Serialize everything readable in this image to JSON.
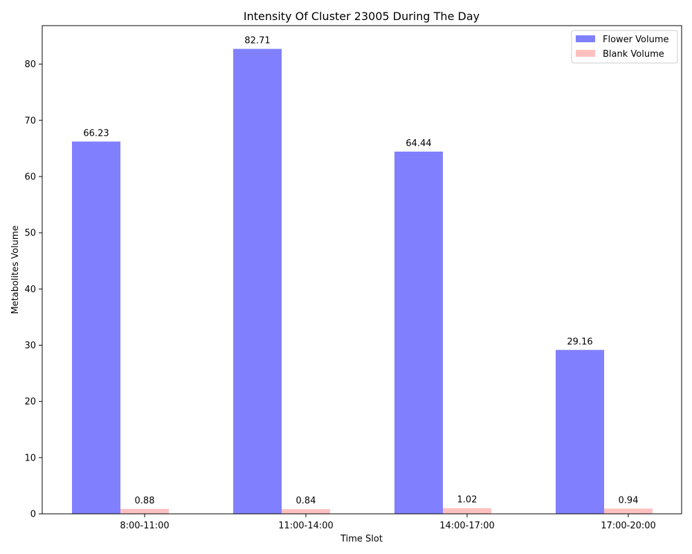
{
  "chart_data": {
    "type": "bar",
    "title": "Intensity Of Cluster 23005 During The Day",
    "xlabel": "Time Slot",
    "ylabel": "Metabolites Volume",
    "categories": [
      "8:00-11:00",
      "11:00-14:00",
      "14:00-17:00",
      "17:00-20:00"
    ],
    "series": [
      {
        "name": "Flower Volume",
        "color": "#8080ff",
        "values": [
          66.23,
          82.71,
          64.44,
          29.16
        ],
        "labels": [
          "66.23",
          "82.71",
          "64.44",
          "29.16"
        ]
      },
      {
        "name": "Blank Volume",
        "color": "#ffc0c0",
        "values": [
          0.88,
          0.84,
          1.02,
          0.94
        ],
        "labels": [
          "0.88",
          "0.84",
          "1.02",
          "0.94"
        ]
      }
    ],
    "ylim": [
      0,
      86.85
    ],
    "yticks": [
      0,
      10,
      20,
      30,
      40,
      50,
      60,
      70,
      80
    ],
    "legend": "top-right",
    "grid": false
  }
}
